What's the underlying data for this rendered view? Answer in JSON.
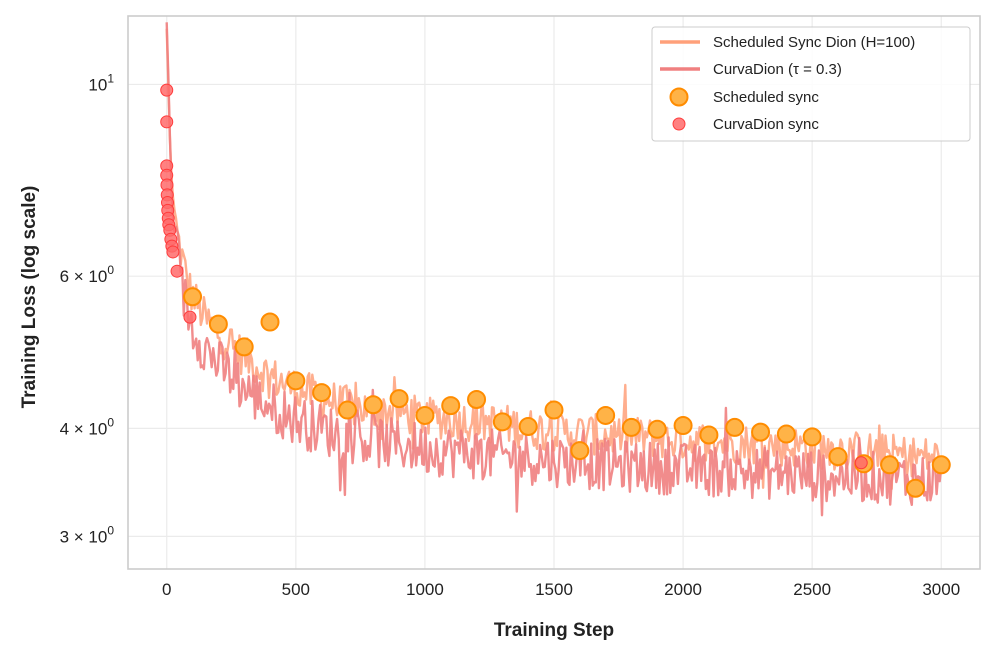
{
  "chart_data": {
    "type": "line",
    "title": "",
    "xlabel": "Training Step",
    "ylabel": "Training Loss (log scale)",
    "yscale": "log",
    "xlim": [
      -150,
      3150
    ],
    "ylim": [
      2.75,
      12.0
    ],
    "x_ticks": [
      0,
      500,
      1000,
      1500,
      2000,
      2500,
      3000
    ],
    "x_tick_labels": [
      "0",
      "500",
      "1000",
      "1500",
      "2000",
      "2500",
      "3000"
    ],
    "y_ticks": [
      {
        "value": 10,
        "base": "10",
        "exp": "1"
      },
      {
        "value": 6,
        "base": "6 × 10",
        "exp": "0"
      },
      {
        "value": 4,
        "base": "4 × 10",
        "exp": "0"
      },
      {
        "value": 3,
        "base": "3 × 10",
        "exp": "0"
      }
    ],
    "grid": true,
    "legend_position": "top-right",
    "series": [
      {
        "name": "Scheduled Sync Dion (H=100)",
        "kind": "line",
        "color": "#FFA07A",
        "points": [
          [
            0,
            11.6
          ],
          [
            10,
            9.0
          ],
          [
            20,
            7.6
          ],
          [
            40,
            6.7
          ],
          [
            60,
            6.3
          ],
          [
            80,
            5.9
          ],
          [
            100,
            5.7
          ],
          [
            150,
            5.35
          ],
          [
            200,
            5.15
          ],
          [
            250,
            5.0
          ],
          [
            300,
            4.85
          ],
          [
            400,
            4.6
          ],
          [
            500,
            4.45
          ],
          [
            600,
            4.35
          ],
          [
            700,
            4.25
          ],
          [
            800,
            4.2
          ],
          [
            900,
            4.18
          ],
          [
            1000,
            4.12
          ],
          [
            1100,
            4.1
          ],
          [
            1200,
            4.08
          ],
          [
            1300,
            4.05
          ],
          [
            1400,
            4.0
          ],
          [
            1500,
            3.98
          ],
          [
            1600,
            3.95
          ],
          [
            1700,
            3.93
          ],
          [
            1800,
            3.92
          ],
          [
            1900,
            3.9
          ],
          [
            2000,
            3.88
          ],
          [
            2100,
            3.86
          ],
          [
            2200,
            3.85
          ],
          [
            2300,
            3.83
          ],
          [
            2400,
            3.82
          ],
          [
            2500,
            3.8
          ],
          [
            2600,
            3.78
          ],
          [
            2700,
            3.76
          ],
          [
            2800,
            3.74
          ],
          [
            2900,
            3.72
          ],
          [
            3000,
            3.7
          ]
        ]
      },
      {
        "name": "CurvaDion (τ = 0.3)",
        "kind": "line",
        "color": "#F08080",
        "points": [
          [
            0,
            11.8
          ],
          [
            10,
            9.2
          ],
          [
            20,
            7.2
          ],
          [
            40,
            6.3
          ],
          [
            60,
            5.8
          ],
          [
            80,
            5.5
          ],
          [
            100,
            5.25
          ],
          [
            150,
            4.95
          ],
          [
            200,
            4.75
          ],
          [
            250,
            4.6
          ],
          [
            300,
            4.45
          ],
          [
            400,
            4.25
          ],
          [
            500,
            4.1
          ],
          [
            600,
            4.0
          ],
          [
            700,
            3.92
          ],
          [
            800,
            3.87
          ],
          [
            900,
            3.83
          ],
          [
            1000,
            3.8
          ],
          [
            1100,
            3.77
          ],
          [
            1200,
            3.75
          ],
          [
            1300,
            3.72
          ],
          [
            1400,
            3.7
          ],
          [
            1500,
            3.68
          ],
          [
            1600,
            3.66
          ],
          [
            1700,
            3.64
          ],
          [
            1800,
            3.62
          ],
          [
            1900,
            3.61
          ],
          [
            2000,
            3.6
          ],
          [
            2100,
            3.58
          ],
          [
            2200,
            3.57
          ],
          [
            2300,
            3.56
          ],
          [
            2400,
            3.55
          ],
          [
            2500,
            3.54
          ],
          [
            2600,
            3.53
          ],
          [
            2700,
            3.52
          ],
          [
            2800,
            3.51
          ],
          [
            2900,
            3.5
          ],
          [
            3000,
            3.49
          ]
        ]
      },
      {
        "name": "Scheduled sync",
        "kind": "scatter",
        "color": "#FFB347",
        "edge": "#FF8C00",
        "points": [
          [
            100,
            5.68
          ],
          [
            200,
            5.28
          ],
          [
            300,
            4.97
          ],
          [
            400,
            5.31
          ],
          [
            500,
            4.54
          ],
          [
            600,
            4.4
          ],
          [
            700,
            4.2
          ],
          [
            800,
            4.26
          ],
          [
            900,
            4.33
          ],
          [
            1000,
            4.14
          ],
          [
            1100,
            4.25
          ],
          [
            1200,
            4.32
          ],
          [
            1300,
            4.07
          ],
          [
            1400,
            4.02
          ],
          [
            1500,
            4.2
          ],
          [
            1600,
            3.77
          ],
          [
            1700,
            4.14
          ],
          [
            1800,
            4.01
          ],
          [
            1900,
            3.99
          ],
          [
            2000,
            4.03
          ],
          [
            2100,
            3.93
          ],
          [
            2200,
            4.01
          ],
          [
            2300,
            3.96
          ],
          [
            2400,
            3.94
          ],
          [
            2500,
            3.91
          ],
          [
            2600,
            3.71
          ],
          [
            2700,
            3.64
          ],
          [
            2800,
            3.63
          ],
          [
            2900,
            3.41
          ],
          [
            3000,
            3.63
          ]
        ]
      },
      {
        "name": "CurvaDion sync",
        "kind": "scatter",
        "color": "#FF6B6B",
        "edge": "#FF3B3B",
        "points": [
          [
            0,
            9.85
          ],
          [
            0,
            9.05
          ],
          [
            0,
            8.05
          ],
          [
            0,
            7.85
          ],
          [
            1,
            7.65
          ],
          [
            2,
            7.45
          ],
          [
            3,
            7.3
          ],
          [
            4,
            7.15
          ],
          [
            6,
            7.0
          ],
          [
            8,
            6.88
          ],
          [
            12,
            6.78
          ],
          [
            16,
            6.62
          ],
          [
            20,
            6.5
          ],
          [
            24,
            6.4
          ],
          [
            40,
            6.08
          ],
          [
            90,
            5.38
          ],
          [
            2690,
            3.65
          ]
        ]
      }
    ]
  }
}
